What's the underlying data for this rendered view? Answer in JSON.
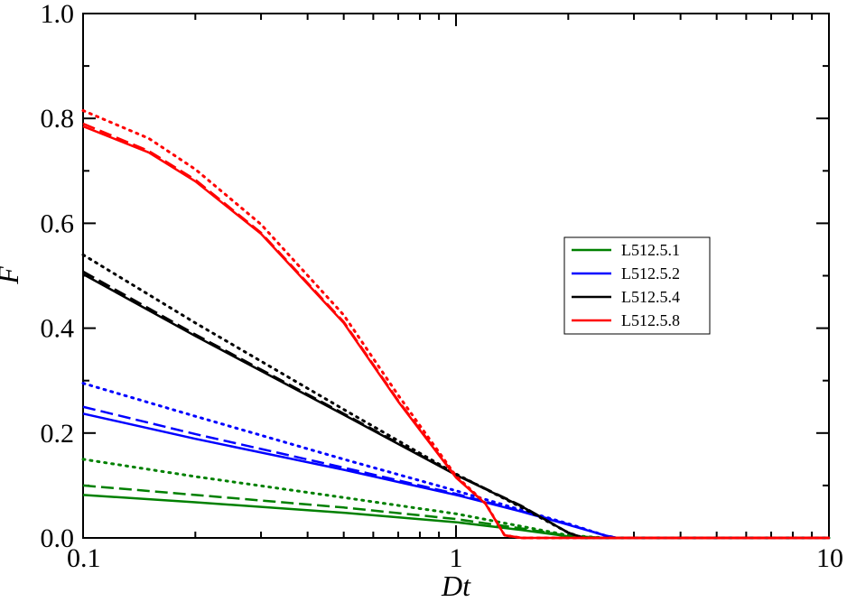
{
  "chart_data": {
    "type": "line",
    "title": "",
    "xlabel": "Dt",
    "ylabel": "F",
    "xscale": "log",
    "xlim": [
      0.1,
      10
    ],
    "ylim": [
      0.0,
      1.0
    ],
    "x_tick_labels": [
      "0.1",
      "1",
      "10"
    ],
    "x_ticks": [
      0.1,
      1,
      10
    ],
    "y_tick_labels": [
      "0.0",
      "0.2",
      "0.4",
      "0.6",
      "0.8",
      "1.0"
    ],
    "y_ticks": [
      0.0,
      0.2,
      0.4,
      0.6,
      0.8,
      1.0
    ],
    "grid": false,
    "legend_position": "center-right",
    "legend": [
      "L512.5.1",
      "L512.5.2",
      "L512.5.4",
      "L512.5.8"
    ],
    "series": [
      {
        "name": "L512.5.1",
        "color": "#008000",
        "linestyle": "solid",
        "x": [
          0.1,
          0.2,
          0.5,
          1.0,
          1.5,
          2.0,
          2.5,
          10
        ],
        "y": [
          0.082,
          0.068,
          0.048,
          0.03,
          0.015,
          0.003,
          0.0,
          0.0
        ]
      },
      {
        "color": "#008000",
        "linestyle": "dashed",
        "x": [
          0.1,
          0.2,
          0.5,
          1.0,
          1.5,
          2.0,
          2.5,
          10
        ],
        "y": [
          0.1,
          0.082,
          0.058,
          0.036,
          0.018,
          0.004,
          0.0,
          0.0
        ]
      },
      {
        "color": "#008000",
        "linestyle": "dotted",
        "x": [
          0.1,
          0.2,
          0.5,
          1.0,
          1.5,
          2.0,
          2.5,
          10
        ],
        "y": [
          0.15,
          0.117,
          0.077,
          0.046,
          0.022,
          0.005,
          0.0,
          0.0
        ]
      },
      {
        "name": "L512.5.2",
        "color": "#0000ff",
        "linestyle": "solid",
        "x": [
          0.1,
          0.2,
          0.5,
          1.0,
          1.5,
          2.0,
          2.5,
          2.7,
          10
        ],
        "y": [
          0.237,
          0.189,
          0.13,
          0.082,
          0.05,
          0.025,
          0.005,
          0.0,
          0.0
        ]
      },
      {
        "color": "#0000ff",
        "linestyle": "dashed",
        "x": [
          0.1,
          0.2,
          0.5,
          1.0,
          1.5,
          2.0,
          2.5,
          2.7,
          10
        ],
        "y": [
          0.25,
          0.198,
          0.134,
          0.084,
          0.051,
          0.026,
          0.005,
          0.0,
          0.0
        ]
      },
      {
        "color": "#0000ff",
        "linestyle": "dotted",
        "x": [
          0.1,
          0.2,
          0.5,
          1.0,
          1.5,
          2.0,
          2.5,
          2.7,
          10
        ],
        "y": [
          0.295,
          0.232,
          0.15,
          0.09,
          0.053,
          0.027,
          0.005,
          0.0,
          0.0
        ]
      },
      {
        "name": "L512.5.4",
        "color": "#000000",
        "linestyle": "solid",
        "x": [
          0.1,
          0.2,
          0.5,
          1.0,
          1.5,
          2.0,
          2.2,
          10
        ],
        "y": [
          0.503,
          0.385,
          0.235,
          0.12,
          0.06,
          0.01,
          0.0,
          0.0
        ]
      },
      {
        "color": "#000000",
        "linestyle": "dashed",
        "x": [
          0.1,
          0.2,
          0.5,
          1.0,
          1.5,
          2.0,
          2.2,
          10
        ],
        "y": [
          0.508,
          0.388,
          0.237,
          0.121,
          0.061,
          0.01,
          0.0,
          0.0
        ]
      },
      {
        "color": "#000000",
        "linestyle": "dotted",
        "x": [
          0.1,
          0.2,
          0.5,
          1.0,
          1.5,
          2.0,
          2.2,
          10
        ],
        "y": [
          0.54,
          0.41,
          0.245,
          0.122,
          0.058,
          0.01,
          0.0,
          0.0
        ]
      },
      {
        "name": "L512.5.8",
        "color": "#ff0000",
        "linestyle": "solid",
        "x": [
          0.1,
          0.15,
          0.2,
          0.3,
          0.5,
          0.7,
          1.0,
          1.2,
          1.35,
          1.5,
          10
        ],
        "y": [
          0.785,
          0.735,
          0.68,
          0.58,
          0.41,
          0.26,
          0.115,
          0.065,
          0.005,
          0.0,
          0.0
        ]
      },
      {
        "color": "#ff0000",
        "linestyle": "dashed",
        "x": [
          0.1,
          0.15,
          0.2,
          0.3,
          0.5,
          0.7,
          1.0,
          1.2,
          1.35,
          1.5,
          10
        ],
        "y": [
          0.79,
          0.738,
          0.683,
          0.582,
          0.412,
          0.262,
          0.116,
          0.065,
          0.005,
          0.0,
          0.0
        ]
      },
      {
        "color": "#ff0000",
        "linestyle": "dotted",
        "x": [
          0.1,
          0.15,
          0.2,
          0.3,
          0.5,
          0.7,
          1.0,
          1.2,
          1.35,
          1.5,
          10
        ],
        "y": [
          0.815,
          0.762,
          0.703,
          0.598,
          0.425,
          0.272,
          0.118,
          0.066,
          0.005,
          0.0,
          0.0
        ]
      }
    ]
  }
}
